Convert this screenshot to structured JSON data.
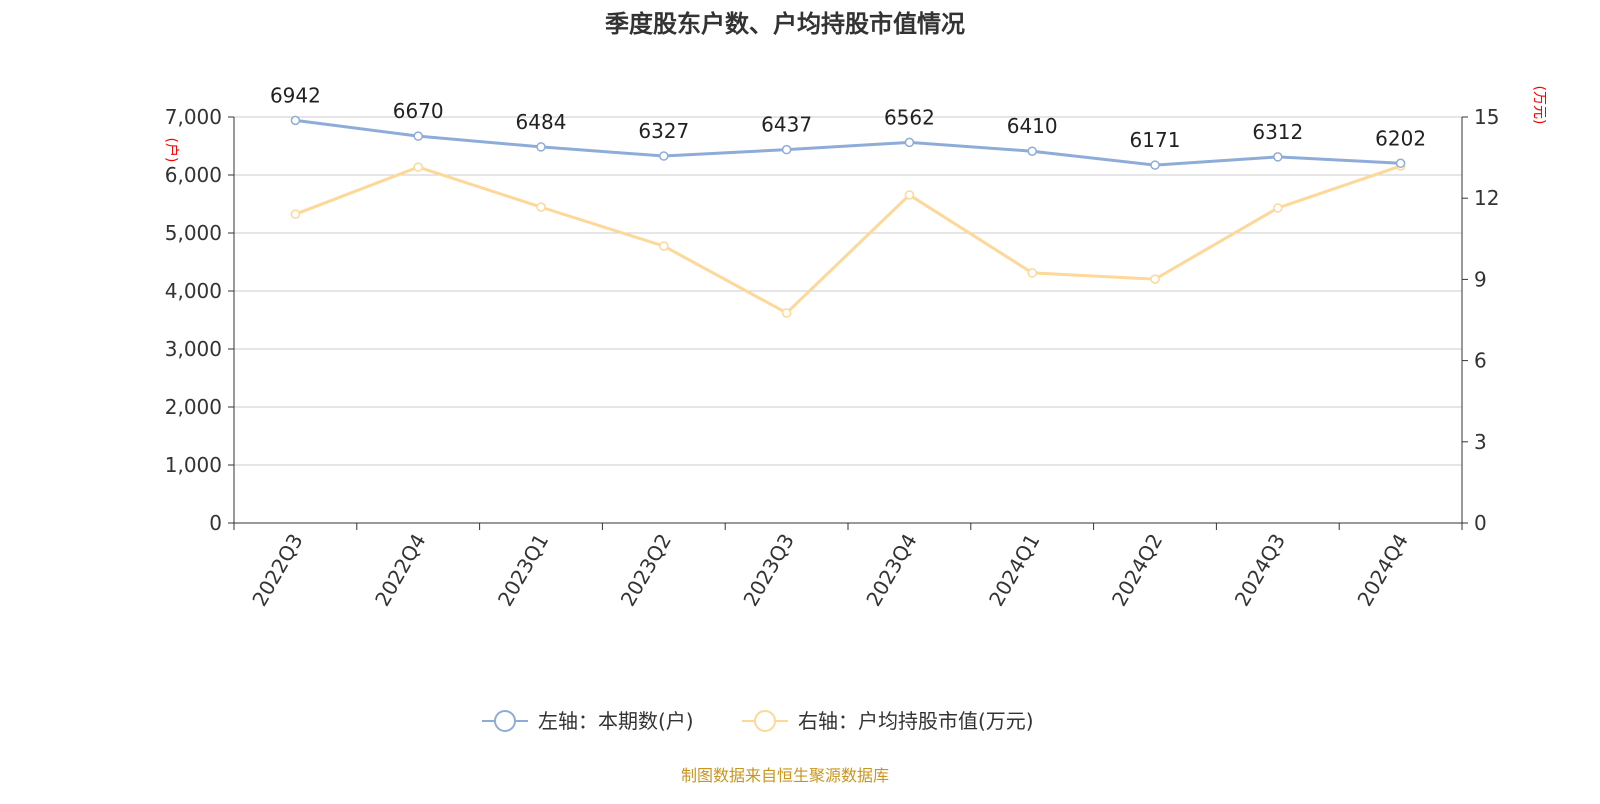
{
  "chart_data": {
    "type": "line",
    "title": "季度股东户数、户均持股市值情况",
    "categories": [
      "2022Q3",
      "2022Q4",
      "2023Q1",
      "2023Q2",
      "2023Q3",
      "2023Q4",
      "2024Q1",
      "2024Q2",
      "2024Q3",
      "2024Q4"
    ],
    "left_axis": {
      "label": "(户)",
      "range": [
        0,
        7000
      ],
      "ticks": [
        0,
        1000,
        2000,
        3000,
        4000,
        5000,
        6000,
        7000
      ],
      "tick_labels": [
        "0",
        "1,000",
        "2,000",
        "3,000",
        "4,000",
        "5,000",
        "6,000",
        "7,000"
      ]
    },
    "right_axis": {
      "label": "(万元)",
      "range": [
        0,
        15
      ],
      "ticks": [
        0,
        3,
        6,
        9,
        12,
        15
      ],
      "tick_labels": [
        "0",
        "3",
        "6",
        "9",
        "12",
        "15"
      ]
    },
    "grid": true,
    "legend_placement": "bottom",
    "series": [
      {
        "name": "左轴：本期数(户)",
        "axis": "left",
        "color": "#8eacd8",
        "show_labels": true,
        "values": [
          6942,
          6670,
          6484,
          6327,
          6437,
          6562,
          6410,
          6171,
          6312,
          6202
        ]
      },
      {
        "name": "右轴：户均持股市值(万元)",
        "axis": "right",
        "color": "#fdd899",
        "show_labels": false,
        "values": [
          11.41,
          13.15,
          11.67,
          10.23,
          7.76,
          12.12,
          9.24,
          9.01,
          11.64,
          13.19
        ]
      }
    ],
    "axis_label_color": "#ff0000"
  },
  "footer": {
    "source": "制图数据来自恒生聚源数据库",
    "color": "#c8961e"
  }
}
